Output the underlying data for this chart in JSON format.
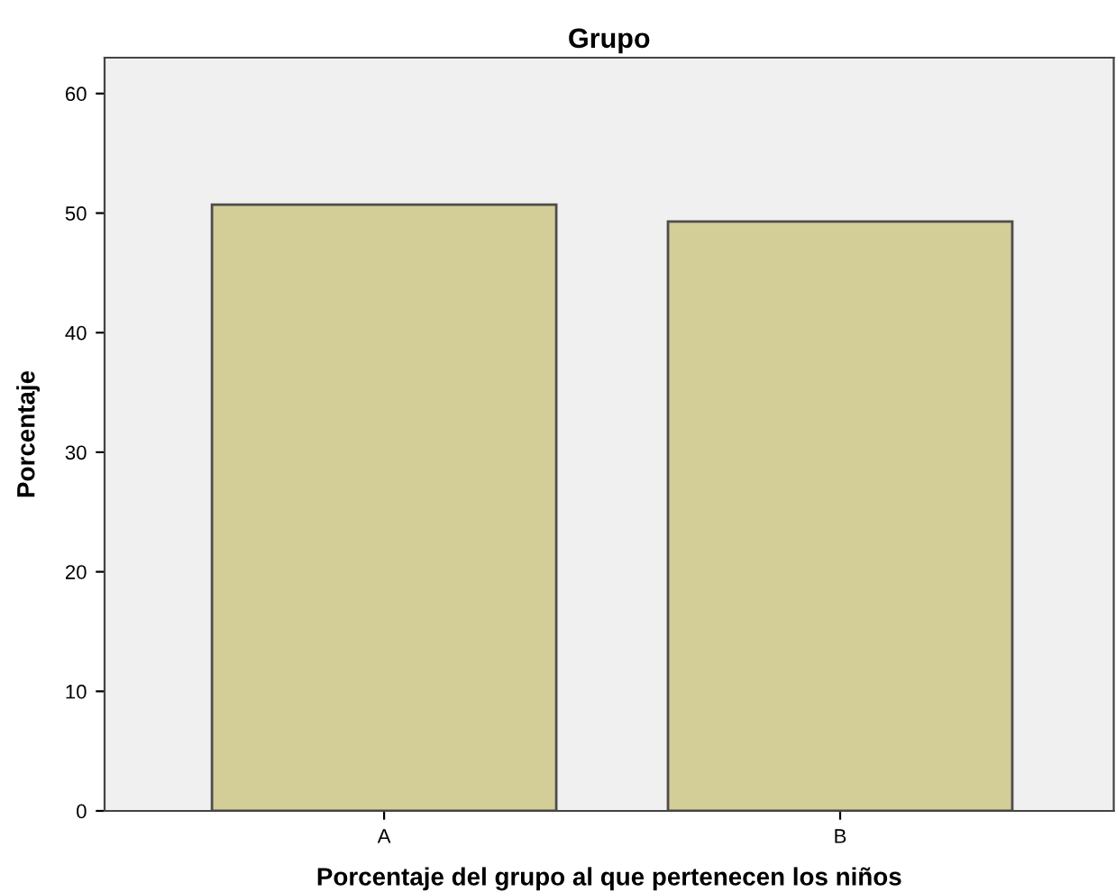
{
  "chart_data": {
    "type": "bar",
    "title": "Grupo",
    "xlabel": "Porcentaje del grupo al que pertenecen los niños",
    "ylabel": "Porcentaje",
    "categories": [
      "A",
      "B"
    ],
    "values": [
      50.7,
      49.3
    ],
    "color": "#d3cd97",
    "ylim": [
      0,
      63
    ],
    "yticks": [
      0,
      10,
      20,
      30,
      40,
      50,
      60
    ],
    "grid": false
  }
}
